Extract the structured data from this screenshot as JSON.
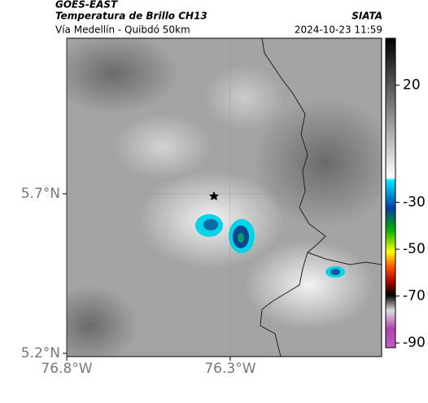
{
  "header": {
    "title": "GOES-EAST",
    "subtitle": "Temperatura de Brillo CH13",
    "source": "SIATA",
    "location": "Vía Medellín - Quibdó 50km",
    "datetime": "2024-10-23 11:59"
  },
  "map": {
    "xlim": [
      -76.8,
      -75.837
    ],
    "ylim": [
      5.19,
      6.187
    ],
    "xticks": [
      {
        "value": -76.8,
        "label": "76.8°W"
      },
      {
        "value": -76.3,
        "label": "76.3°W"
      }
    ],
    "yticks": [
      {
        "value": 5.2,
        "label": "5.2°N"
      },
      {
        "value": 5.7,
        "label": "5.7°N"
      }
    ],
    "grid": true
  },
  "colorbar": {
    "lim": [
      -92,
      40
    ],
    "ticks": [
      20,
      -30,
      -50,
      -70,
      -90
    ]
  }
}
